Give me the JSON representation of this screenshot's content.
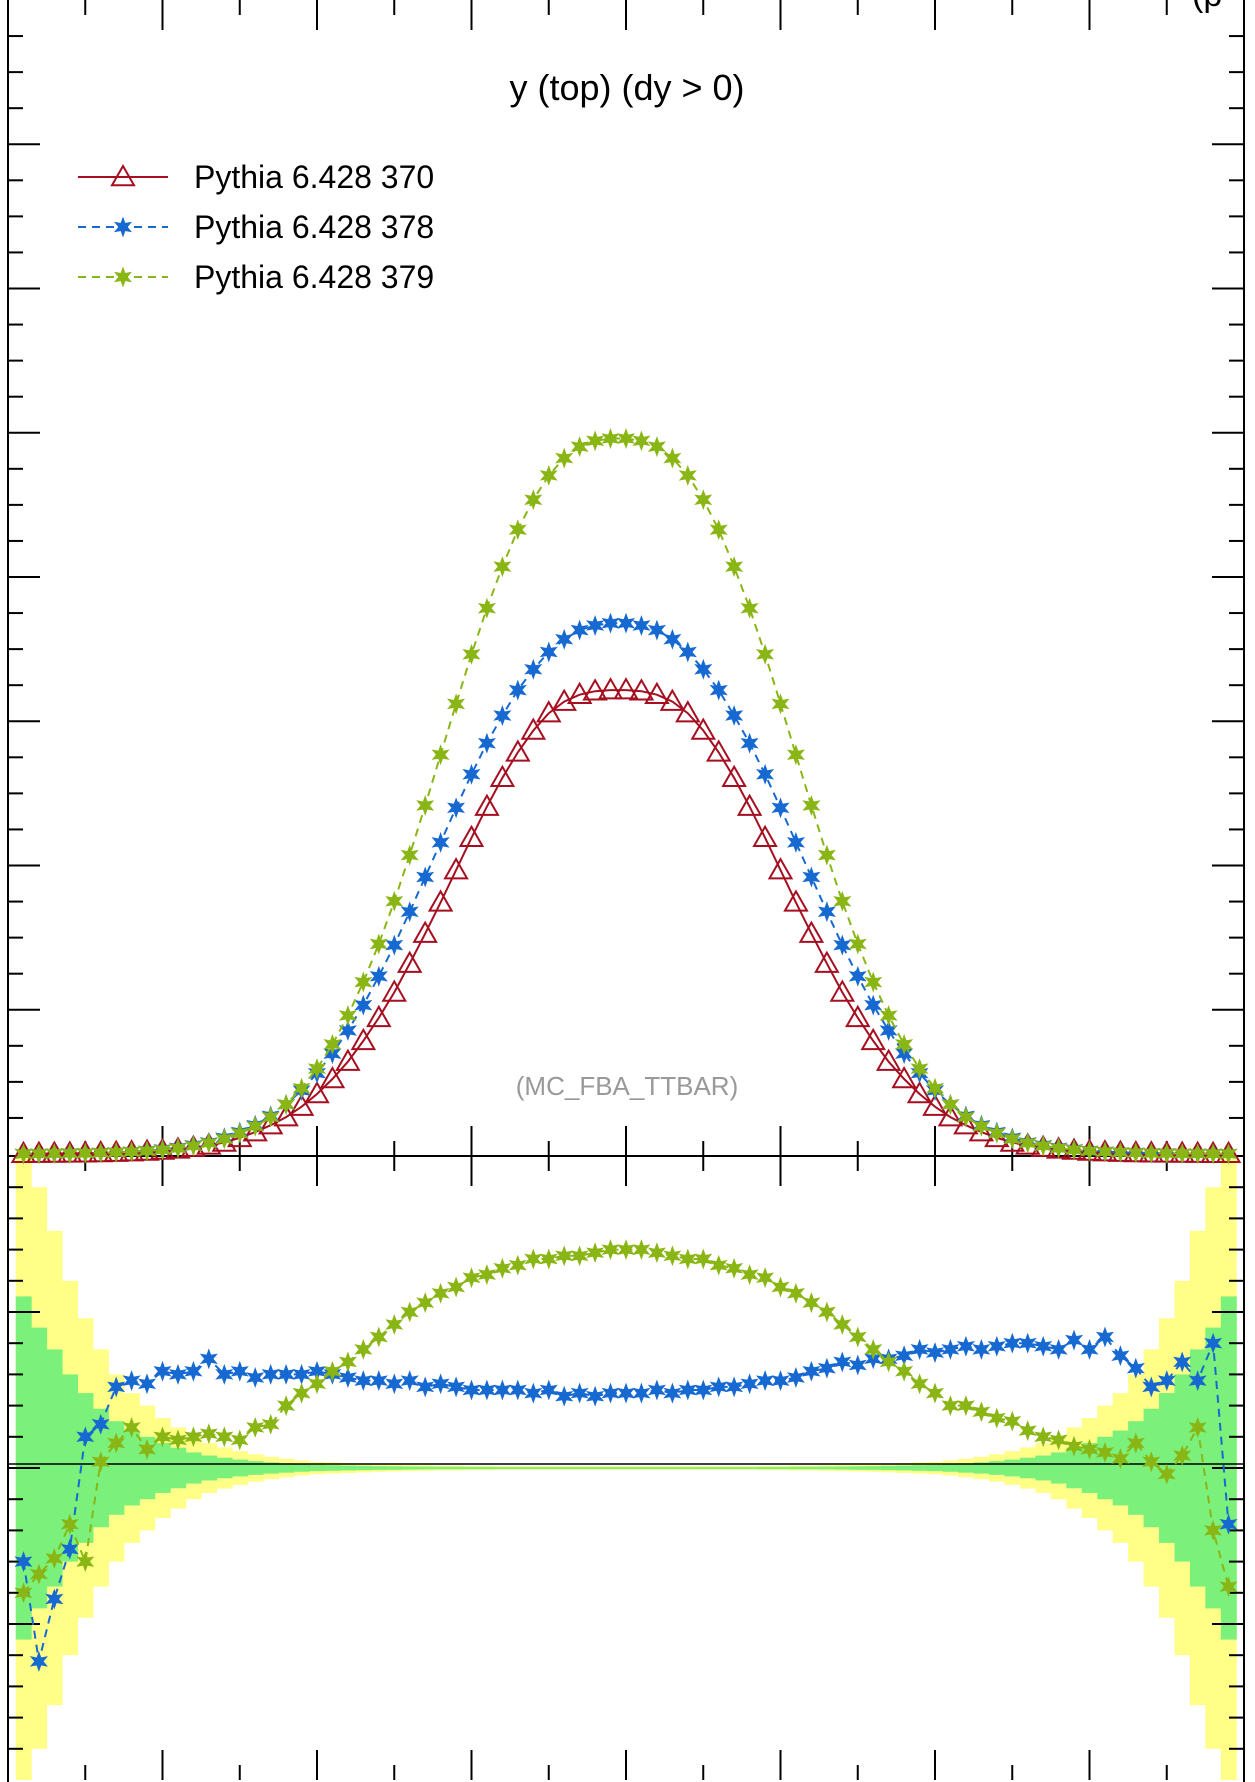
{
  "plot_title": "y (top) (dy > 0)",
  "plot_id": "(MC_FBA_TTBAR)",
  "header_fragment": "(p",
  "chart_data": [
    {
      "type": "line",
      "panel": "main",
      "title": "y (top) (dy > 0)",
      "legend": "top-left",
      "grid": false,
      "xlim": [
        -4.0,
        4.0
      ],
      "ylim": [
        0,
        100
      ],
      "x": [
        -3.9,
        -3.8,
        -3.7,
        -3.6,
        -3.5,
        -3.4,
        -3.3,
        -3.2,
        -3.1,
        -3.0,
        -2.9,
        -2.8,
        -2.7,
        -2.6,
        -2.5,
        -2.4,
        -2.3,
        -2.2,
        -2.1,
        -2.0,
        -1.9,
        -1.8,
        -1.7,
        -1.6,
        -1.5,
        -1.4,
        -1.3,
        -1.2,
        -1.1,
        -1.0,
        -0.9,
        -0.8,
        -0.7,
        -0.6,
        -0.5,
        -0.4,
        -0.3,
        -0.2,
        -0.1,
        0.0,
        0.1,
        0.2,
        0.3,
        0.4,
        0.5,
        0.6,
        0.7,
        0.8,
        0.9,
        1.0,
        1.1,
        1.2,
        1.3,
        1.4,
        1.5,
        1.6,
        1.7,
        1.8,
        1.9,
        2.0,
        2.1,
        2.2,
        2.3,
        2.4,
        2.5,
        2.6,
        2.7,
        2.8,
        2.9,
        3.0,
        3.1,
        3.2,
        3.3,
        3.4,
        3.5,
        3.6,
        3.7,
        3.8,
        3.9
      ],
      "series": [
        {
          "name": "Pythia 6.428 370",
          "color": "#a50f20",
          "marker": "triangle-open",
          "dash": "solid",
          "values": [
            0.02,
            0.03,
            0.04,
            0.05,
            0.07,
            0.09,
            0.12,
            0.16,
            0.22,
            0.3,
            0.4,
            0.55,
            0.75,
            1.0,
            1.4,
            1.9,
            2.5,
            3.2,
            4.1,
            5.2,
            6.5,
            8.0,
            9.8,
            11.8,
            14.0,
            16.5,
            19.1,
            21.8,
            24.6,
            27.4,
            30.1,
            32.6,
            34.8,
            36.7,
            38.2,
            39.2,
            39.8,
            40.1,
            40.2,
            40.2,
            40.1,
            39.8,
            39.2,
            38.2,
            36.7,
            34.8,
            32.6,
            30.1,
            27.4,
            24.6,
            21.8,
            19.1,
            16.5,
            14.0,
            11.8,
            9.8,
            8.0,
            6.5,
            5.2,
            4.1,
            3.2,
            2.5,
            1.9,
            1.4,
            1.0,
            0.75,
            0.55,
            0.4,
            0.3,
            0.22,
            0.16,
            0.12,
            0.09,
            0.07,
            0.05,
            0.04,
            0.03,
            0.02,
            0.02
          ]
        },
        {
          "name": "Pythia 6.428 378",
          "color": "#1769d2",
          "marker": "star",
          "dash": "dashed",
          "values": [
            0.02,
            0.03,
            0.04,
            0.06,
            0.08,
            0.11,
            0.15,
            0.21,
            0.29,
            0.4,
            0.55,
            0.75,
            1.0,
            1.4,
            1.9,
            2.5,
            3.3,
            4.3,
            5.5,
            7.0,
            8.7,
            10.7,
            12.9,
            15.4,
            18.1,
            21.0,
            24.0,
            27.0,
            30.0,
            32.9,
            35.6,
            38.0,
            40.2,
            42.0,
            43.5,
            44.6,
            45.4,
            45.8,
            46.0,
            46.0,
            45.8,
            45.4,
            44.6,
            43.5,
            42.0,
            40.2,
            38.0,
            35.6,
            32.9,
            30.0,
            27.0,
            24.0,
            21.0,
            18.1,
            15.4,
            12.9,
            10.7,
            8.7,
            7.0,
            5.5,
            4.3,
            3.3,
            2.5,
            1.9,
            1.4,
            1.0,
            0.75,
            0.55,
            0.4,
            0.29,
            0.21,
            0.15,
            0.11,
            0.08,
            0.06,
            0.04,
            0.03,
            0.02,
            0.02
          ]
        },
        {
          "name": "Pythia 6.428 379",
          "color": "#8ab615",
          "marker": "star",
          "dash": "dashed",
          "values": [
            0.02,
            0.03,
            0.04,
            0.05,
            0.07,
            0.1,
            0.14,
            0.19,
            0.26,
            0.36,
            0.5,
            0.7,
            0.95,
            1.3,
            1.8,
            2.4,
            3.2,
            4.3,
            5.7,
            7.4,
            9.5,
            12.0,
            14.9,
            18.2,
            21.9,
            25.9,
            30.2,
            34.6,
            39.0,
            43.3,
            47.3,
            50.9,
            54.1,
            56.7,
            58.8,
            60.3,
            61.3,
            61.8,
            62.0,
            62.0,
            61.8,
            61.3,
            60.3,
            58.8,
            56.7,
            54.1,
            50.9,
            47.3,
            43.3,
            39.0,
            34.6,
            30.2,
            25.9,
            21.9,
            18.2,
            14.9,
            12.0,
            9.5,
            7.4,
            5.7,
            4.3,
            3.2,
            2.4,
            1.8,
            1.3,
            0.95,
            0.7,
            0.5,
            0.36,
            0.26,
            0.19,
            0.14,
            0.1,
            0.07,
            0.05,
            0.04,
            0.03,
            0.02,
            0.02
          ]
        }
      ]
    },
    {
      "type": "line",
      "panel": "ratio",
      "grid": false,
      "xlim": [
        -4.0,
        4.0
      ],
      "ylim": [
        -1.0,
        1.0
      ],
      "reference_line": 0,
      "bands": [
        {
          "name": "inner",
          "color": "#7bf07b",
          "halfwidth": [
            0.55,
            0.45,
            0.38,
            0.3,
            0.24,
            0.19,
            0.15,
            0.12,
            0.1,
            0.08,
            0.065,
            0.05,
            0.04,
            0.033,
            0.027,
            0.022,
            0.018,
            0.015,
            0.012,
            0.01,
            0.009,
            0.008,
            0.007,
            0.006,
            0.0055,
            0.005,
            0.0045,
            0.004,
            0.004,
            0.0035,
            0.0035,
            0.003,
            0.003,
            0.003,
            0.003,
            0.003,
            0.003,
            0.003,
            0.003,
            0.003,
            0.003,
            0.003,
            0.003,
            0.003,
            0.003,
            0.003,
            0.003,
            0.003,
            0.0035,
            0.0035,
            0.004,
            0.004,
            0.0045,
            0.005,
            0.0055,
            0.006,
            0.007,
            0.008,
            0.009,
            0.01,
            0.012,
            0.015,
            0.018,
            0.022,
            0.027,
            0.033,
            0.04,
            0.05,
            0.065,
            0.08,
            0.1,
            0.12,
            0.15,
            0.19,
            0.24,
            0.3,
            0.38,
            0.45,
            0.55
          ]
        },
        {
          "name": "outer",
          "color": "#ffff88",
          "halfwidth": [
            1.1,
            0.9,
            0.76,
            0.6,
            0.48,
            0.38,
            0.3,
            0.24,
            0.2,
            0.16,
            0.13,
            0.1,
            0.08,
            0.066,
            0.054,
            0.044,
            0.036,
            0.03,
            0.024,
            0.02,
            0.018,
            0.016,
            0.014,
            0.012,
            0.011,
            0.01,
            0.009,
            0.008,
            0.008,
            0.007,
            0.007,
            0.006,
            0.006,
            0.006,
            0.006,
            0.006,
            0.006,
            0.006,
            0.006,
            0.006,
            0.006,
            0.006,
            0.006,
            0.006,
            0.006,
            0.006,
            0.006,
            0.006,
            0.007,
            0.007,
            0.008,
            0.008,
            0.009,
            0.01,
            0.011,
            0.012,
            0.014,
            0.016,
            0.018,
            0.02,
            0.024,
            0.03,
            0.036,
            0.044,
            0.054,
            0.066,
            0.08,
            0.1,
            0.13,
            0.16,
            0.2,
            0.24,
            0.3,
            0.38,
            0.48,
            0.6,
            0.76,
            0.9,
            1.1
          ]
        }
      ],
      "x": [
        -3.9,
        -3.8,
        -3.7,
        -3.6,
        -3.5,
        -3.4,
        -3.3,
        -3.2,
        -3.1,
        -3.0,
        -2.9,
        -2.8,
        -2.7,
        -2.6,
        -2.5,
        -2.4,
        -2.3,
        -2.2,
        -2.1,
        -2.0,
        -1.9,
        -1.8,
        -1.7,
        -1.6,
        -1.5,
        -1.4,
        -1.3,
        -1.2,
        -1.1,
        -1.0,
        -0.9,
        -0.8,
        -0.7,
        -0.6,
        -0.5,
        -0.4,
        -0.3,
        -0.2,
        -0.1,
        0.0,
        0.1,
        0.2,
        0.3,
        0.4,
        0.5,
        0.6,
        0.7,
        0.8,
        0.9,
        1.0,
        1.1,
        1.2,
        1.3,
        1.4,
        1.5,
        1.6,
        1.7,
        1.8,
        1.9,
        2.0,
        2.1,
        2.2,
        2.3,
        2.4,
        2.5,
        2.6,
        2.7,
        2.8,
        2.9,
        3.0,
        3.1,
        3.2,
        3.3,
        3.4,
        3.5,
        3.6,
        3.7,
        3.8,
        3.9
      ],
      "series": [
        {
          "name": "Pythia 6.428 378",
          "color": "#1769d2",
          "marker": "star",
          "dash": "dashed",
          "values": [
            -0.3,
            -0.62,
            -0.42,
            -0.26,
            0.1,
            0.14,
            0.26,
            0.28,
            0.27,
            0.31,
            0.3,
            0.31,
            0.35,
            0.3,
            0.31,
            0.29,
            0.3,
            0.3,
            0.3,
            0.31,
            0.3,
            0.29,
            0.28,
            0.28,
            0.27,
            0.28,
            0.26,
            0.27,
            0.26,
            0.25,
            0.25,
            0.25,
            0.25,
            0.24,
            0.25,
            0.23,
            0.24,
            0.23,
            0.24,
            0.24,
            0.24,
            0.25,
            0.24,
            0.25,
            0.25,
            0.26,
            0.26,
            0.27,
            0.28,
            0.28,
            0.29,
            0.31,
            0.32,
            0.34,
            0.33,
            0.35,
            0.35,
            0.36,
            0.38,
            0.37,
            0.38,
            0.39,
            0.38,
            0.39,
            0.4,
            0.4,
            0.39,
            0.38,
            0.41,
            0.38,
            0.42,
            0.36,
            0.32,
            0.26,
            0.28,
            0.34,
            0.28,
            0.4,
            -0.18
          ]
        },
        {
          "name": "Pythia 6.428 379",
          "color": "#8ab615",
          "marker": "star",
          "dash": "dashed",
          "values": [
            -0.4,
            -0.34,
            -0.29,
            -0.18,
            -0.3,
            0.02,
            0.08,
            0.13,
            0.06,
            0.1,
            0.09,
            0.1,
            0.11,
            0.1,
            0.09,
            0.13,
            0.14,
            0.2,
            0.24,
            0.27,
            0.31,
            0.34,
            0.38,
            0.42,
            0.46,
            0.5,
            0.53,
            0.56,
            0.58,
            0.61,
            0.62,
            0.64,
            0.65,
            0.67,
            0.67,
            0.68,
            0.68,
            0.69,
            0.7,
            0.7,
            0.7,
            0.69,
            0.68,
            0.67,
            0.67,
            0.65,
            0.64,
            0.62,
            0.61,
            0.58,
            0.56,
            0.53,
            0.5,
            0.46,
            0.42,
            0.38,
            0.34,
            0.31,
            0.27,
            0.24,
            0.2,
            0.2,
            0.18,
            0.16,
            0.15,
            0.12,
            0.1,
            0.09,
            0.07,
            0.06,
            0.05,
            0.03,
            0.08,
            0.02,
            -0.02,
            0.04,
            0.13,
            -0.2,
            -0.38
          ]
        }
      ]
    }
  ]
}
